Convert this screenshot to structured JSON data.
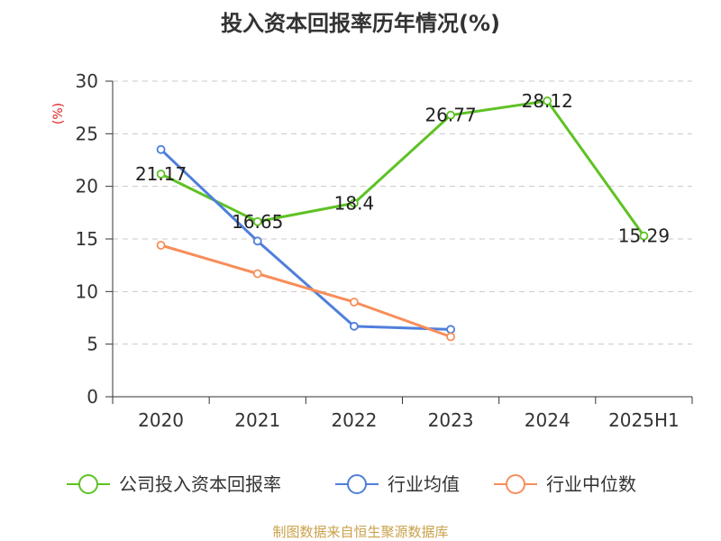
{
  "chart_data": {
    "type": "line",
    "title": "投入资本回报率历年情况(%)",
    "ylabel": "(%)",
    "unit_color": "#e02020",
    "categories": [
      "2020",
      "2021",
      "2022",
      "2023",
      "2024",
      "2025H1"
    ],
    "ylim": [
      0,
      30
    ],
    "yticks": [
      0,
      5,
      10,
      15,
      20,
      25,
      30
    ],
    "grid": true,
    "legend_position": "bottom",
    "series": [
      {
        "name": "公司投入资本回报率",
        "color": "#5ec224",
        "values": [
          21.17,
          16.65,
          18.4,
          26.77,
          28.12,
          15.29
        ],
        "labels": [
          "21.17",
          "16.65",
          "18.4",
          "26.77",
          "28.12",
          "15.29"
        ]
      },
      {
        "name": "行业均值",
        "color": "#4f7fdb",
        "values": [
          23.5,
          14.8,
          6.7,
          6.4,
          null,
          null
        ]
      },
      {
        "name": "行业中位数",
        "color": "#f78e5a",
        "values": [
          14.4,
          11.7,
          9.0,
          5.7,
          null,
          null
        ]
      }
    ]
  },
  "footer": {
    "source": "制图数据来自恒生聚源数据库"
  }
}
